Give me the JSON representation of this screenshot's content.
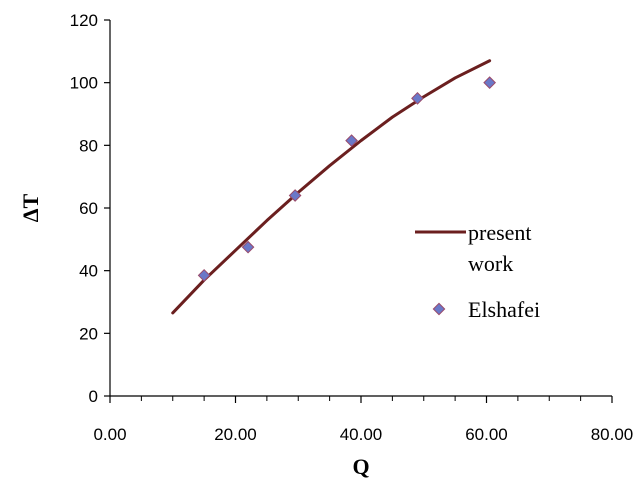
{
  "chart_data": {
    "type": "scatter",
    "title": "",
    "xlabel": "Q",
    "ylabel": "ΔT",
    "xlim": [
      0,
      80
    ],
    "ylim": [
      0,
      120
    ],
    "x_ticks": [
      "0.00",
      "20.00",
      "40.00",
      "60.00",
      "80.00"
    ],
    "y_ticks": [
      "0",
      "20",
      "40",
      "60",
      "80",
      "100",
      "120"
    ],
    "grid": false,
    "legend_position": "right",
    "series": [
      {
        "name": "present work",
        "type": "line",
        "color": "#6b1f1f",
        "x": [
          10,
          15,
          20,
          25,
          30,
          35,
          40,
          45,
          50,
          55,
          60.5
        ],
        "y": [
          26.5,
          37,
          46.5,
          56,
          65,
          73.5,
          81.5,
          89,
          95.5,
          101.5,
          107
        ]
      },
      {
        "name": "Elshafei",
        "type": "scatter",
        "marker": "diamond",
        "color": "#6a78c8",
        "edge_color": "#9a4a6a",
        "x": [
          15,
          22,
          29.5,
          38.5,
          49,
          60.5
        ],
        "y": [
          38.5,
          47.5,
          64,
          81.5,
          95,
          100
        ]
      }
    ]
  }
}
